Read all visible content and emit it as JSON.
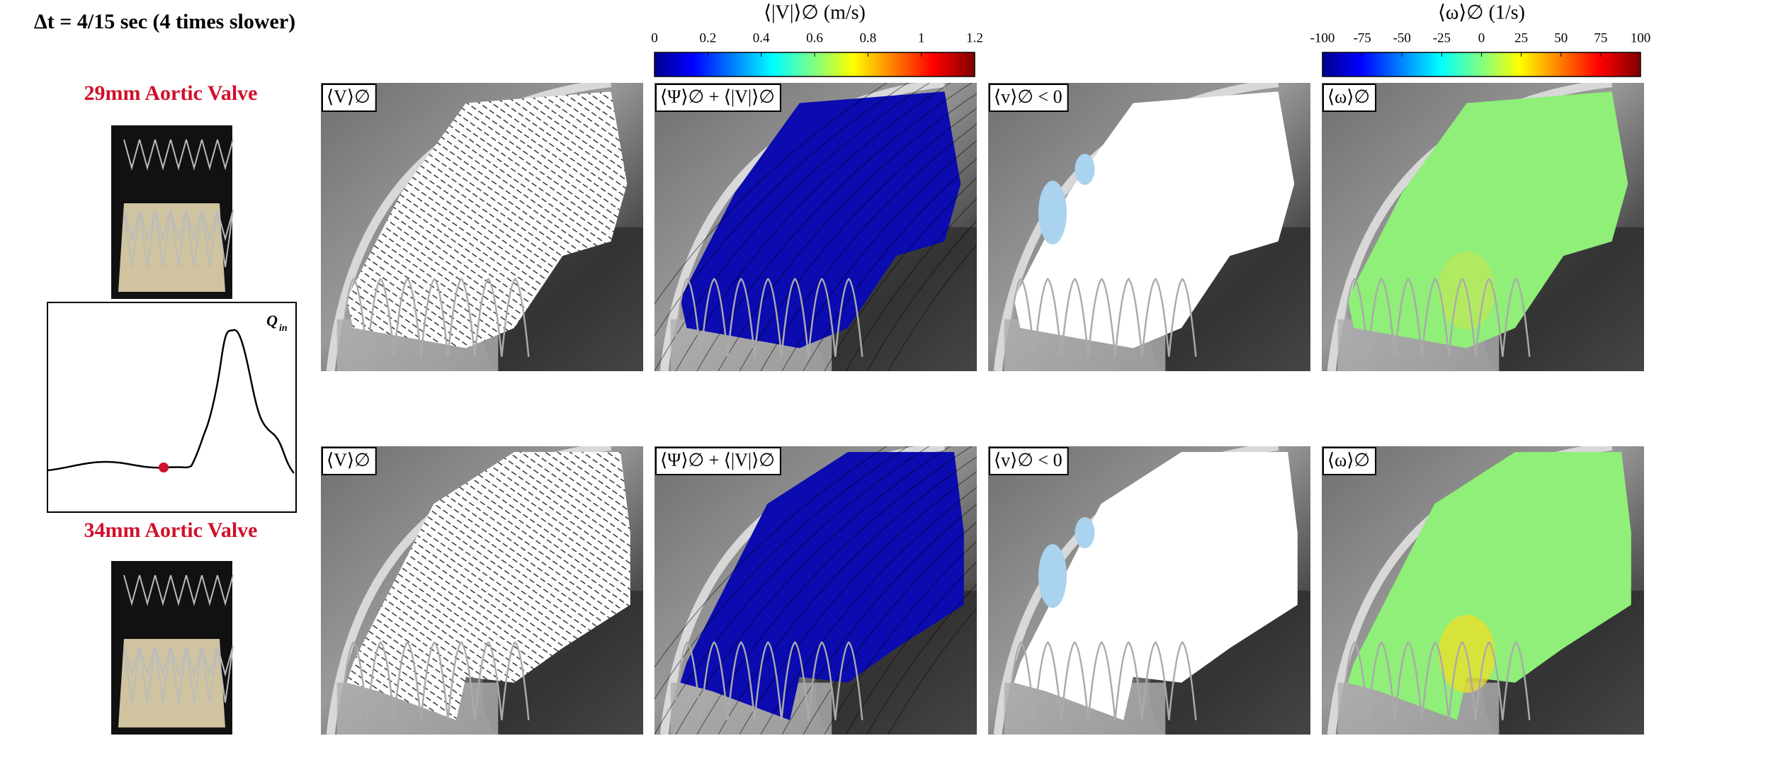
{
  "header": {
    "title": "Δt = 4/15 sec (4 times slower)"
  },
  "valves": [
    {
      "label": "29mm Aortic Valve"
    },
    {
      "label": "34mm Aortic Valve"
    }
  ],
  "flow_plot": {
    "label": "Q",
    "subscript": "in"
  },
  "colorbars": [
    {
      "title": "⟨|V|⟩∅ (m/s)",
      "ticks": [
        0,
        0.2,
        0.4,
        0.6,
        0.8,
        1,
        1.2
      ]
    },
    {
      "title": "⟨ω⟩∅ (1/s)",
      "ticks": [
        -100,
        -75,
        -50,
        -25,
        0,
        25,
        50,
        75,
        100
      ]
    }
  ],
  "panels": [
    "⟨V⟩∅",
    "⟨Ψ⟩∅ + ⟨|V|⟩∅",
    "⟨v⟩∅ < 0",
    "⟨ω⟩∅"
  ]
}
